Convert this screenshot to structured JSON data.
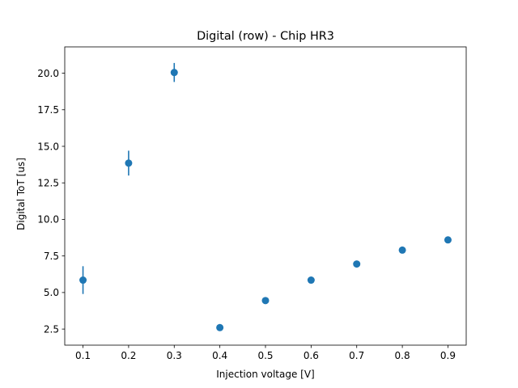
{
  "chart_data": {
    "type": "scatter",
    "title": "Digital (row) - Chip HR3",
    "xlabel": "Injection voltage [V]",
    "ylabel": "Digital ToT [us]",
    "xlim": [
      0.06,
      0.94
    ],
    "ylim": [
      1.4,
      21.8
    ],
    "xticks": [
      0.1,
      0.2,
      0.3,
      0.4,
      0.5,
      0.6,
      0.7,
      0.8,
      0.9
    ],
    "xtick_labels": [
      "0.1",
      "0.2",
      "0.3",
      "0.4",
      "0.5",
      "0.6",
      "0.7",
      "0.8",
      "0.9"
    ],
    "yticks": [
      2.5,
      5.0,
      7.5,
      10.0,
      12.5,
      15.0,
      17.5,
      20.0
    ],
    "ytick_labels": [
      "2.5",
      "5.0",
      "7.5",
      "10.0",
      "12.5",
      "15.0",
      "17.5",
      "20.0"
    ],
    "grid": false,
    "marker_color": "#1f77b4",
    "series": [
      {
        "x": [
          0.1,
          0.2,
          0.3,
          0.4,
          0.5,
          0.6,
          0.7,
          0.8,
          0.9
        ],
        "y": [
          5.85,
          13.85,
          20.05,
          2.6,
          4.45,
          5.85,
          6.95,
          7.9,
          8.6
        ],
        "yerr": [
          0.95,
          0.85,
          0.65,
          0.15,
          0.05,
          0.15,
          0.05,
          0.2,
          0.05
        ]
      }
    ]
  }
}
